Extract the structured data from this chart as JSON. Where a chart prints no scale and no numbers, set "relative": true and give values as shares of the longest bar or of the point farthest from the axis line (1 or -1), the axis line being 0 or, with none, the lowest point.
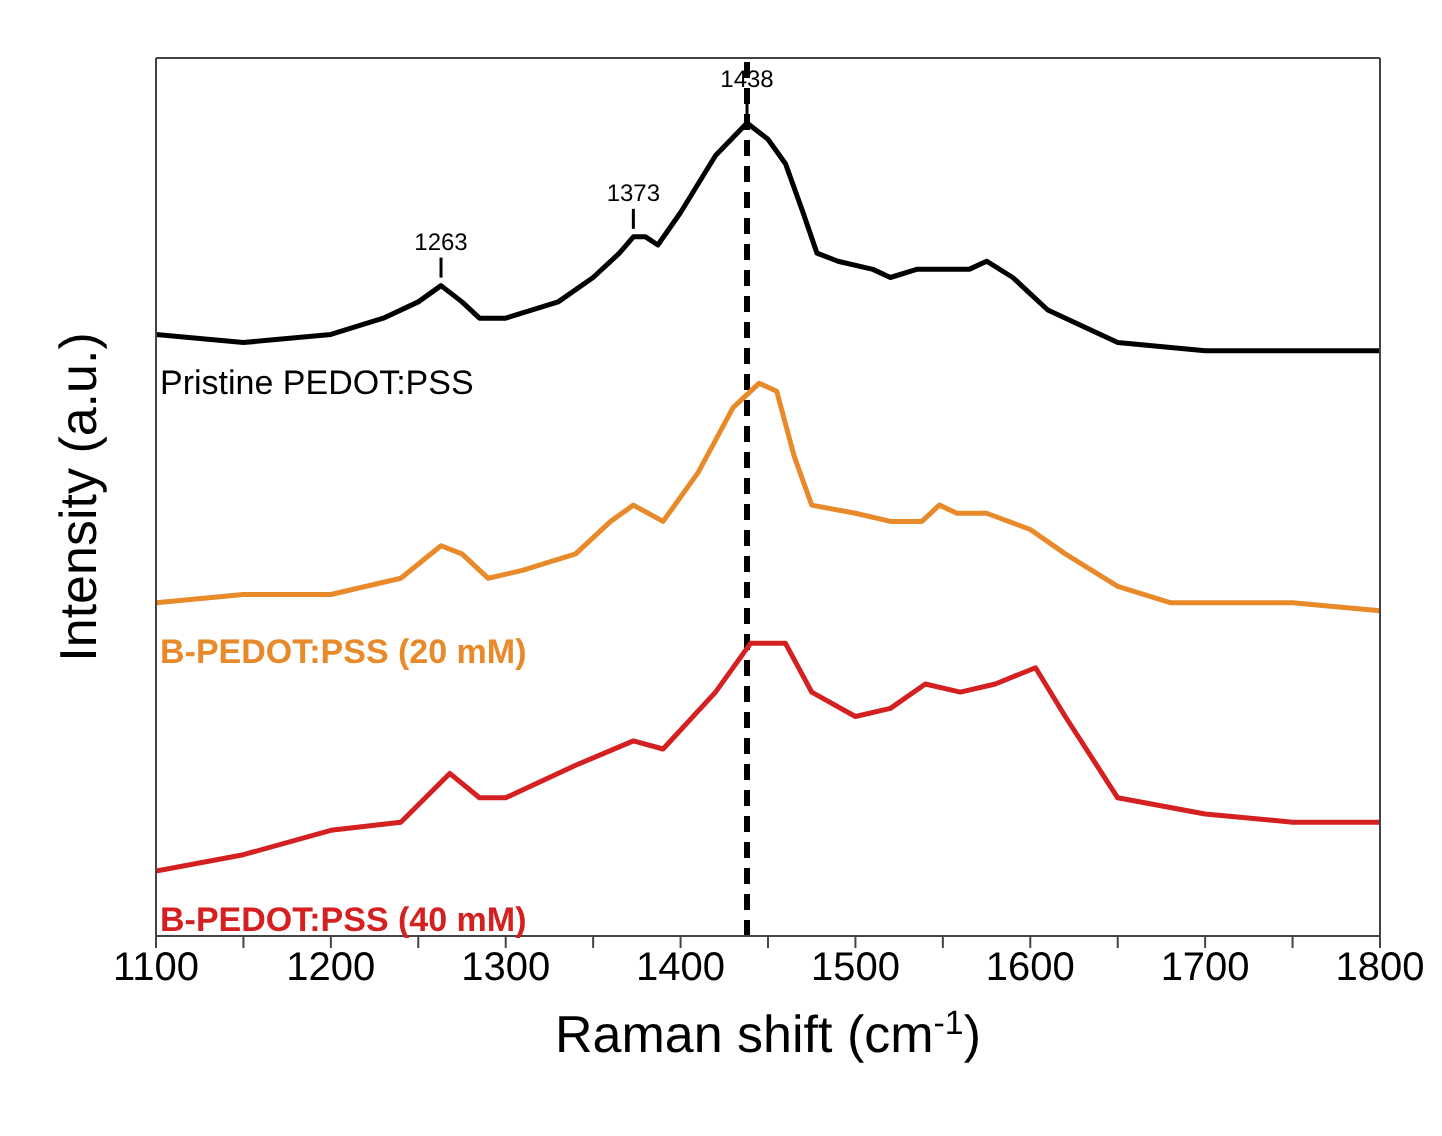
{
  "chart_data": {
    "type": "line",
    "relative": true,
    "xlabel": "Raman shift (cm$^{-1}$)",
    "ylabel": "Intensity (a.u.)",
    "xlim": [
      1100,
      1800
    ],
    "xticks": [
      1100,
      {
        "value": 1150,
        "label": null
      },
      1200,
      {
        "value": 1250,
        "label": null
      },
      1300,
      {
        "value": 1350,
        "label": null
      },
      1400,
      {
        "value": 1450,
        "label": null
      },
      1500,
      {
        "value": 1550,
        "label": null
      },
      1600,
      {
        "value": 1650,
        "label": null
      },
      1700,
      {
        "value": 1750,
        "label": null
      },
      1800
    ],
    "marker": "none",
    "line_style": "solid",
    "tick_labels": "x",
    "series": [
      {
        "name": "Pristine PEDOT:PSS",
        "color": "#000000",
        "x": [
          1100,
          1150,
          1200,
          1230,
          1250,
          1263,
          1275,
          1285,
          1300,
          1330,
          1350,
          1365,
          1373,
          1380,
          1387,
          1400,
          1420,
          1438,
          1450,
          1460,
          1470,
          1478,
          1490,
          1510,
          1520,
          1535,
          1550,
          1565,
          1575,
          1590,
          1610,
          1630,
          1650,
          1700,
          1750,
          1800
        ],
        "values": [
          0.74,
          0.73,
          0.74,
          0.76,
          0.78,
          0.8,
          0.78,
          0.76,
          0.76,
          0.78,
          0.81,
          0.84,
          0.86,
          0.86,
          0.85,
          0.89,
          0.96,
          1,
          0.98,
          0.95,
          0.89,
          0.84,
          0.83,
          0.82,
          0.81,
          0.82,
          0.82,
          0.82,
          0.83,
          0.81,
          0.77,
          0.75,
          0.73,
          0.72,
          0.72,
          0.72
        ]
      },
      {
        "name": "B-PEDOT:PSS (20 mM)",
        "color": "#e8892a",
        "x": [
          1100,
          1150,
          1200,
          1240,
          1263,
          1275,
          1290,
          1310,
          1340,
          1360,
          1373,
          1390,
          1410,
          1430,
          1445,
          1455,
          1465,
          1475,
          1500,
          1520,
          1538,
          1548,
          1558,
          1575,
          1600,
          1620,
          1650,
          1680,
          1700,
          1750,
          1800
        ],
        "values": [
          0.41,
          0.42,
          0.42,
          0.44,
          0.48,
          0.47,
          0.44,
          0.45,
          0.47,
          0.51,
          0.53,
          0.51,
          0.57,
          0.65,
          0.68,
          0.67,
          0.59,
          0.53,
          0.52,
          0.51,
          0.51,
          0.53,
          0.52,
          0.52,
          0.5,
          0.47,
          0.43,
          0.41,
          0.41,
          0.41,
          0.4
        ]
      },
      {
        "name": "B-PEDOT:PSS (40 mM)",
        "color": "#d42020",
        "x": [
          1100,
          1150,
          1200,
          1240,
          1268,
          1285,
          1300,
          1340,
          1373,
          1390,
          1420,
          1440,
          1450,
          1460,
          1475,
          1500,
          1520,
          1540,
          1560,
          1580,
          1603,
          1620,
          1650,
          1700,
          1750,
          1800
        ],
        "values": [
          0.08,
          0.1,
          0.13,
          0.14,
          0.2,
          0.17,
          0.17,
          0.21,
          0.24,
          0.23,
          0.3,
          0.36,
          0.36,
          0.36,
          0.3,
          0.27,
          0.28,
          0.31,
          0.3,
          0.31,
          0.33,
          0.27,
          0.17,
          0.15,
          0.14,
          0.14
        ]
      }
    ],
    "ref_lines": [
      {
        "axis": "x",
        "value": 1438,
        "color": "#000000",
        "line_style": "dashed"
      }
    ],
    "annotations": [
      {
        "text": "1263",
        "x": 1263,
        "y": 0.8
      },
      {
        "text": "1373",
        "x": 1373,
        "y": 0.86
      },
      {
        "text": "1438",
        "x": 1438,
        "y": 1
      }
    ]
  }
}
